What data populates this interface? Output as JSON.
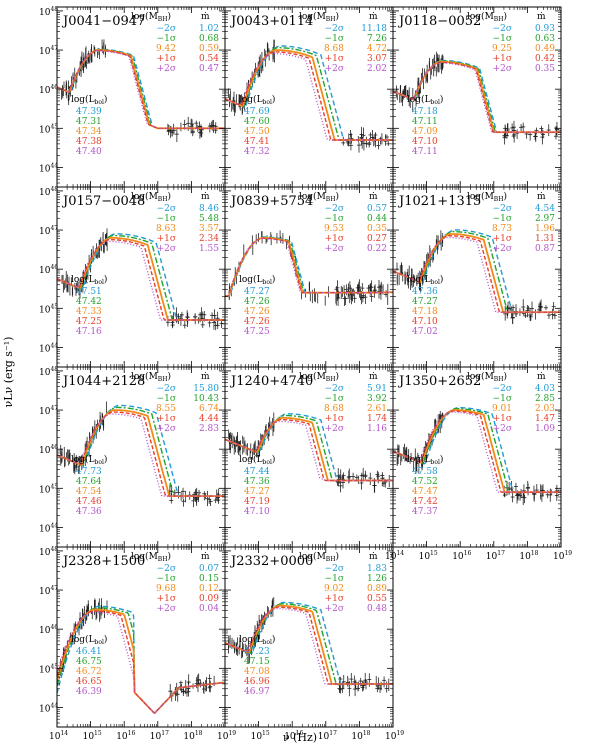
{
  "figure": {
    "xlabel": "ν (Hz)",
    "ylabel": "νLν (erg s⁻¹)"
  },
  "legend": {
    "colors": {
      "m2": "#1f9bd6",
      "m1": "#22a32a",
      "c": "#f28a1a",
      "p1": "#e5402b",
      "p2": "#b455c9"
    },
    "header_mbh": "log(M_BH)",
    "header_mdot": "ṁ",
    "header_lbol": "log(L_bol)",
    "row_labels": [
      "−2σ",
      "−1σ",
      "",
      "+1σ",
      "+2σ"
    ]
  },
  "chart_data": [
    {
      "type": "line",
      "name": "J0041−0947",
      "x_scale": "log",
      "y_scale": "log",
      "xlim": [
        100000000000000.0,
        1e+19
      ],
      "ylim": [
        3e+43,
        1e+48
      ],
      "xticks": [
        "10^14",
        "10^15",
        "10^16",
        "10^17",
        "10^18",
        "10^19"
      ],
      "yticks": [
        "10^44",
        "10^45",
        "10^46",
        "10^47",
        "10^48"
      ],
      "log_mbh": "9.42",
      "mdot": [
        "1.02",
        "0.68",
        "0.59",
        "0.54",
        "0.47"
      ],
      "log_lbol": [
        "47.39",
        "47.31",
        "47.34",
        "47.38",
        "47.40"
      ]
    },
    {
      "type": "line",
      "name": "J0043+0114",
      "x_scale": "log",
      "y_scale": "log",
      "log_mbh": "8.68",
      "mdot": [
        "11.18",
        "7.26",
        "4.72",
        "3.07",
        "2.02"
      ],
      "log_lbol": [
        "47.69",
        "47.60",
        "47.50",
        "47.41",
        "47.32"
      ]
    },
    {
      "type": "line",
      "name": "J0118−0052",
      "x_scale": "log",
      "y_scale": "log",
      "log_mbh": "9.25",
      "mdot": [
        "0.93",
        "0.63",
        "0.49",
        "0.42",
        "0.35"
      ],
      "log_lbol": [
        "47.18",
        "47.11",
        "47.09",
        "47.10",
        "47.11"
      ]
    },
    {
      "type": "line",
      "name": "J0157−0048",
      "x_scale": "log",
      "y_scale": "log",
      "log_mbh": "8.63",
      "mdot": [
        "8.46",
        "5.48",
        "3.57",
        "2.34",
        "1.55"
      ],
      "log_lbol": [
        "47.51",
        "47.42",
        "47.33",
        "47.25",
        "47.16"
      ]
    },
    {
      "type": "line",
      "name": "J0839+5754",
      "x_scale": "log",
      "y_scale": "log",
      "log_mbh": "9.53",
      "mdot": [
        "0.57",
        "0.44",
        "0.35",
        "0.27",
        "0.22"
      ],
      "log_lbol": [
        "47.27",
        "47.26",
        "47.26",
        "47.26",
        "47.25"
      ]
    },
    {
      "type": "line",
      "name": "J1021+1315",
      "x_scale": "log",
      "y_scale": "log",
      "log_mbh": "8.73",
      "mdot": [
        "4.54",
        "2.97",
        "1.96",
        "1.31",
        "0.87"
      ],
      "log_lbol": [
        "47.36",
        "47.27",
        "47.18",
        "47.10",
        "47.02"
      ]
    },
    {
      "type": "line",
      "name": "J1044+2128",
      "x_scale": "log",
      "y_scale": "log",
      "log_mbh": "8.55",
      "mdot": [
        "15.80",
        "10.43",
        "6.74",
        "4.44",
        "2.83"
      ],
      "log_lbol": [
        "47.73",
        "47.64",
        "47.54",
        "47.46",
        "47.36"
      ]
    },
    {
      "type": "line",
      "name": "J1240+4740",
      "x_scale": "log",
      "y_scale": "log",
      "log_mbh": "8.68",
      "mdot": [
        "5.91",
        "3.92",
        "2.61",
        "1.74",
        "1.16"
      ],
      "log_lbol": [
        "47.44",
        "47.36",
        "47.27",
        "47.19",
        "47.10"
      ]
    },
    {
      "type": "line",
      "name": "J1350+2652",
      "x_scale": "log",
      "y_scale": "log",
      "log_mbh": "9.01",
      "mdot": [
        "4.03",
        "2.85",
        "2.03",
        "1.47",
        "1.09"
      ],
      "log_lbol": [
        "47.58",
        "47.52",
        "47.47",
        "47.42",
        "47.37"
      ]
    },
    {
      "type": "line",
      "name": "J2328+1500",
      "x_scale": "log",
      "y_scale": "log",
      "log_mbh": "9.68",
      "mdot": [
        "0.07",
        "0.15",
        "0.12",
        "0.09",
        "0.04"
      ],
      "log_lbol": [
        "46.41",
        "46.75",
        "46.72",
        "46.65",
        "46.39"
      ]
    },
    {
      "type": "line",
      "name": "J2332+0000",
      "x_scale": "log",
      "y_scale": "log",
      "log_mbh": "9.02",
      "mdot": [
        "1.83",
        "1.26",
        "0.89",
        "0.55",
        "0.48"
      ],
      "log_lbol": [
        "47.23",
        "47.15",
        "47.08",
        "46.96",
        "46.97"
      ]
    }
  ]
}
